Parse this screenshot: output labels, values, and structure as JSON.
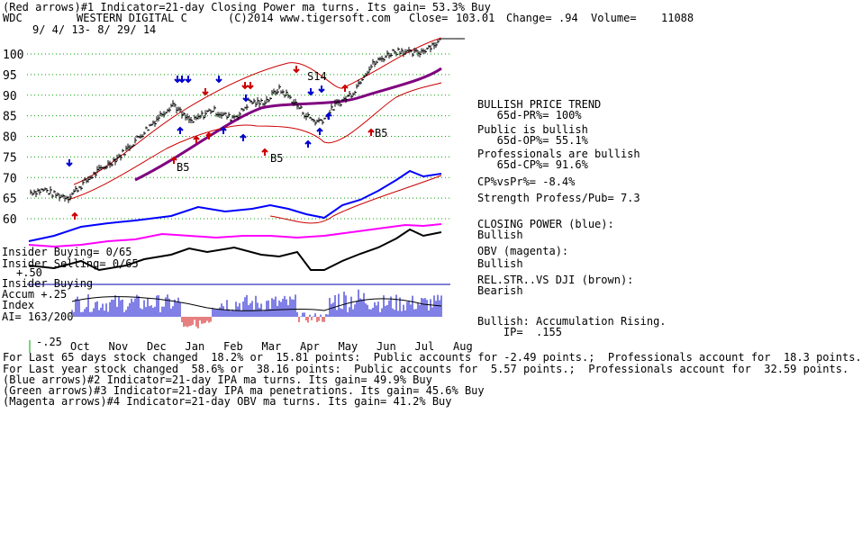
{
  "header": {
    "line1": "(Red arrows)#1 Indicator=21-day Closing Power ma turns. Its gain= 53.3% Buy",
    "ticker": "WDC",
    "company": "WESTERN DIGITAL C",
    "copyright": "(C)2014 www.tigersoft.com",
    "close_text": "Close=",
    "close_value": "103.01",
    "change_text": "Change=",
    "change_value": ".94",
    "volume_text": "Volume=",
    "volume_value": "11088",
    "date_range": "9/ 4/ 13- 8/ 29/ 14"
  },
  "panels": {
    "insider_buying_1": "Insider Buying= 0/65",
    "insider_selling": "Insider Selling= 0/65",
    "neg50": "+.50",
    "insider_buying_2": "Insider Buying",
    "accum_label": "Accum +.25",
    "index_label": "Index",
    "ai_label": "AI= 163/200",
    "neg25": "-.25"
  },
  "annotations": [
    "S14",
    "B5",
    "B5",
    "B5"
  ],
  "right_panel": [
    {
      "id": "r1",
      "text": "BULLISH PRICE TREND"
    },
    {
      "id": "r2",
      "text": "   65d-PR%= 100%"
    },
    {
      "id": "r3",
      "text": "Public is bullish"
    },
    {
      "id": "r4",
      "text": "   65d-OP%= 55.1%"
    },
    {
      "id": "r5",
      "text": "Professionals are bullish"
    },
    {
      "id": "r6",
      "text": "   65d-CP%= 91.6%"
    },
    {
      "id": "r7",
      "text": "CP%vsPr%= -8.4%"
    },
    {
      "id": "r8",
      "text": "Strength Profess/Pub= 7.3"
    },
    {
      "id": "r9",
      "text": "CLOSING POWER (blue):"
    },
    {
      "id": "r10",
      "text": "Bullish"
    },
    {
      "id": "r11",
      "text": "OBV (magenta):"
    },
    {
      "id": "r12",
      "text": "Bullish"
    },
    {
      "id": "r13",
      "text": "REL.STR..VS DJI (brown):"
    },
    {
      "id": "r14",
      "text": "Bearish"
    },
    {
      "id": "r15",
      "text": "Bullish: Accumulation Rising."
    },
    {
      "id": "r16",
      "text": "    IP=  .155"
    }
  ],
  "footer": [
    "For Last 65 days stock changed  18.2% or  15.81 points:  Public accounts for -2.49 points.;  Professionals account for  18.3 points.",
    "For Last year stock changed  58.6% or  38.16 points:  Public accounts for  5.57 points.;  Professionals account for  32.59 points.",
    "(Blue arrows)#2 Indicator=21-day IPA ma turns. Its gain= 49.9% Buy",
    "(Green arrows)#3 Indicator=21-day IPA ma penetrations. Its gain= 45.6% Buy",
    "(Magenta arrows)#4 Indicator=21-day OBV ma turns. Its gain= 41.2% Buy"
  ],
  "chart_data": {
    "type": "line",
    "xlabel": "",
    "ylabel": "",
    "months": [
      "Oct",
      "Nov",
      "Dec",
      "Jan",
      "Feb",
      "Mar",
      "Apr",
      "May",
      "Jun",
      "Jul",
      "Aug"
    ],
    "y_ticks": [
      100,
      95,
      90,
      85,
      80,
      75,
      70,
      65,
      60
    ],
    "ylim": [
      57,
      104
    ],
    "grid": "dotted green horizontal",
    "price_path": [
      [
        0,
        66.5
      ],
      [
        0.3,
        67
      ],
      [
        0.5,
        65.8
      ],
      [
        0.8,
        65.3
      ],
      [
        1.0,
        67.5
      ],
      [
        1.3,
        70.5
      ],
      [
        1.6,
        73
      ],
      [
        1.9,
        75.5
      ],
      [
        2.2,
        79
      ],
      [
        2.5,
        82.5
      ],
      [
        2.8,
        86
      ],
      [
        3.0,
        88
      ],
      [
        3.2,
        85
      ],
      [
        3.4,
        83.5
      ],
      [
        3.6,
        85
      ],
      [
        3.8,
        86.5
      ],
      [
        4.0,
        85.5
      ],
      [
        4.2,
        84.5
      ],
      [
        4.4,
        85.5
      ],
      [
        4.6,
        88.5
      ],
      [
        4.8,
        88
      ],
      [
        5.0,
        89
      ],
      [
        5.2,
        91.5
      ],
      [
        5.4,
        90
      ],
      [
        5.6,
        87.5
      ],
      [
        5.8,
        85
      ],
      [
        6.0,
        83.5
      ],
      [
        6.2,
        84.5
      ],
      [
        6.4,
        87.5
      ],
      [
        6.6,
        89
      ],
      [
        6.8,
        91
      ],
      [
        7.0,
        95
      ],
      [
        7.2,
        97.5
      ],
      [
        7.4,
        99
      ],
      [
        7.6,
        100.5
      ],
      [
        7.8,
        101
      ],
      [
        8.0,
        100
      ],
      [
        8.2,
        100.5
      ],
      [
        8.4,
        102
      ],
      [
        8.6,
        103
      ]
    ],
    "series": [
      {
        "name": "CLOSING POWER (blue)",
        "color": "#0000ff"
      },
      {
        "name": "OBV (magenta)",
        "color": "#ff00ff"
      },
      {
        "name": "REL.STR..VS DJI (brown)",
        "color": "#000000"
      }
    ]
  },
  "colors": {
    "up": "#0000cc",
    "down": "#cc0000",
    "price": "#000000",
    "grid": "#00a000"
  }
}
